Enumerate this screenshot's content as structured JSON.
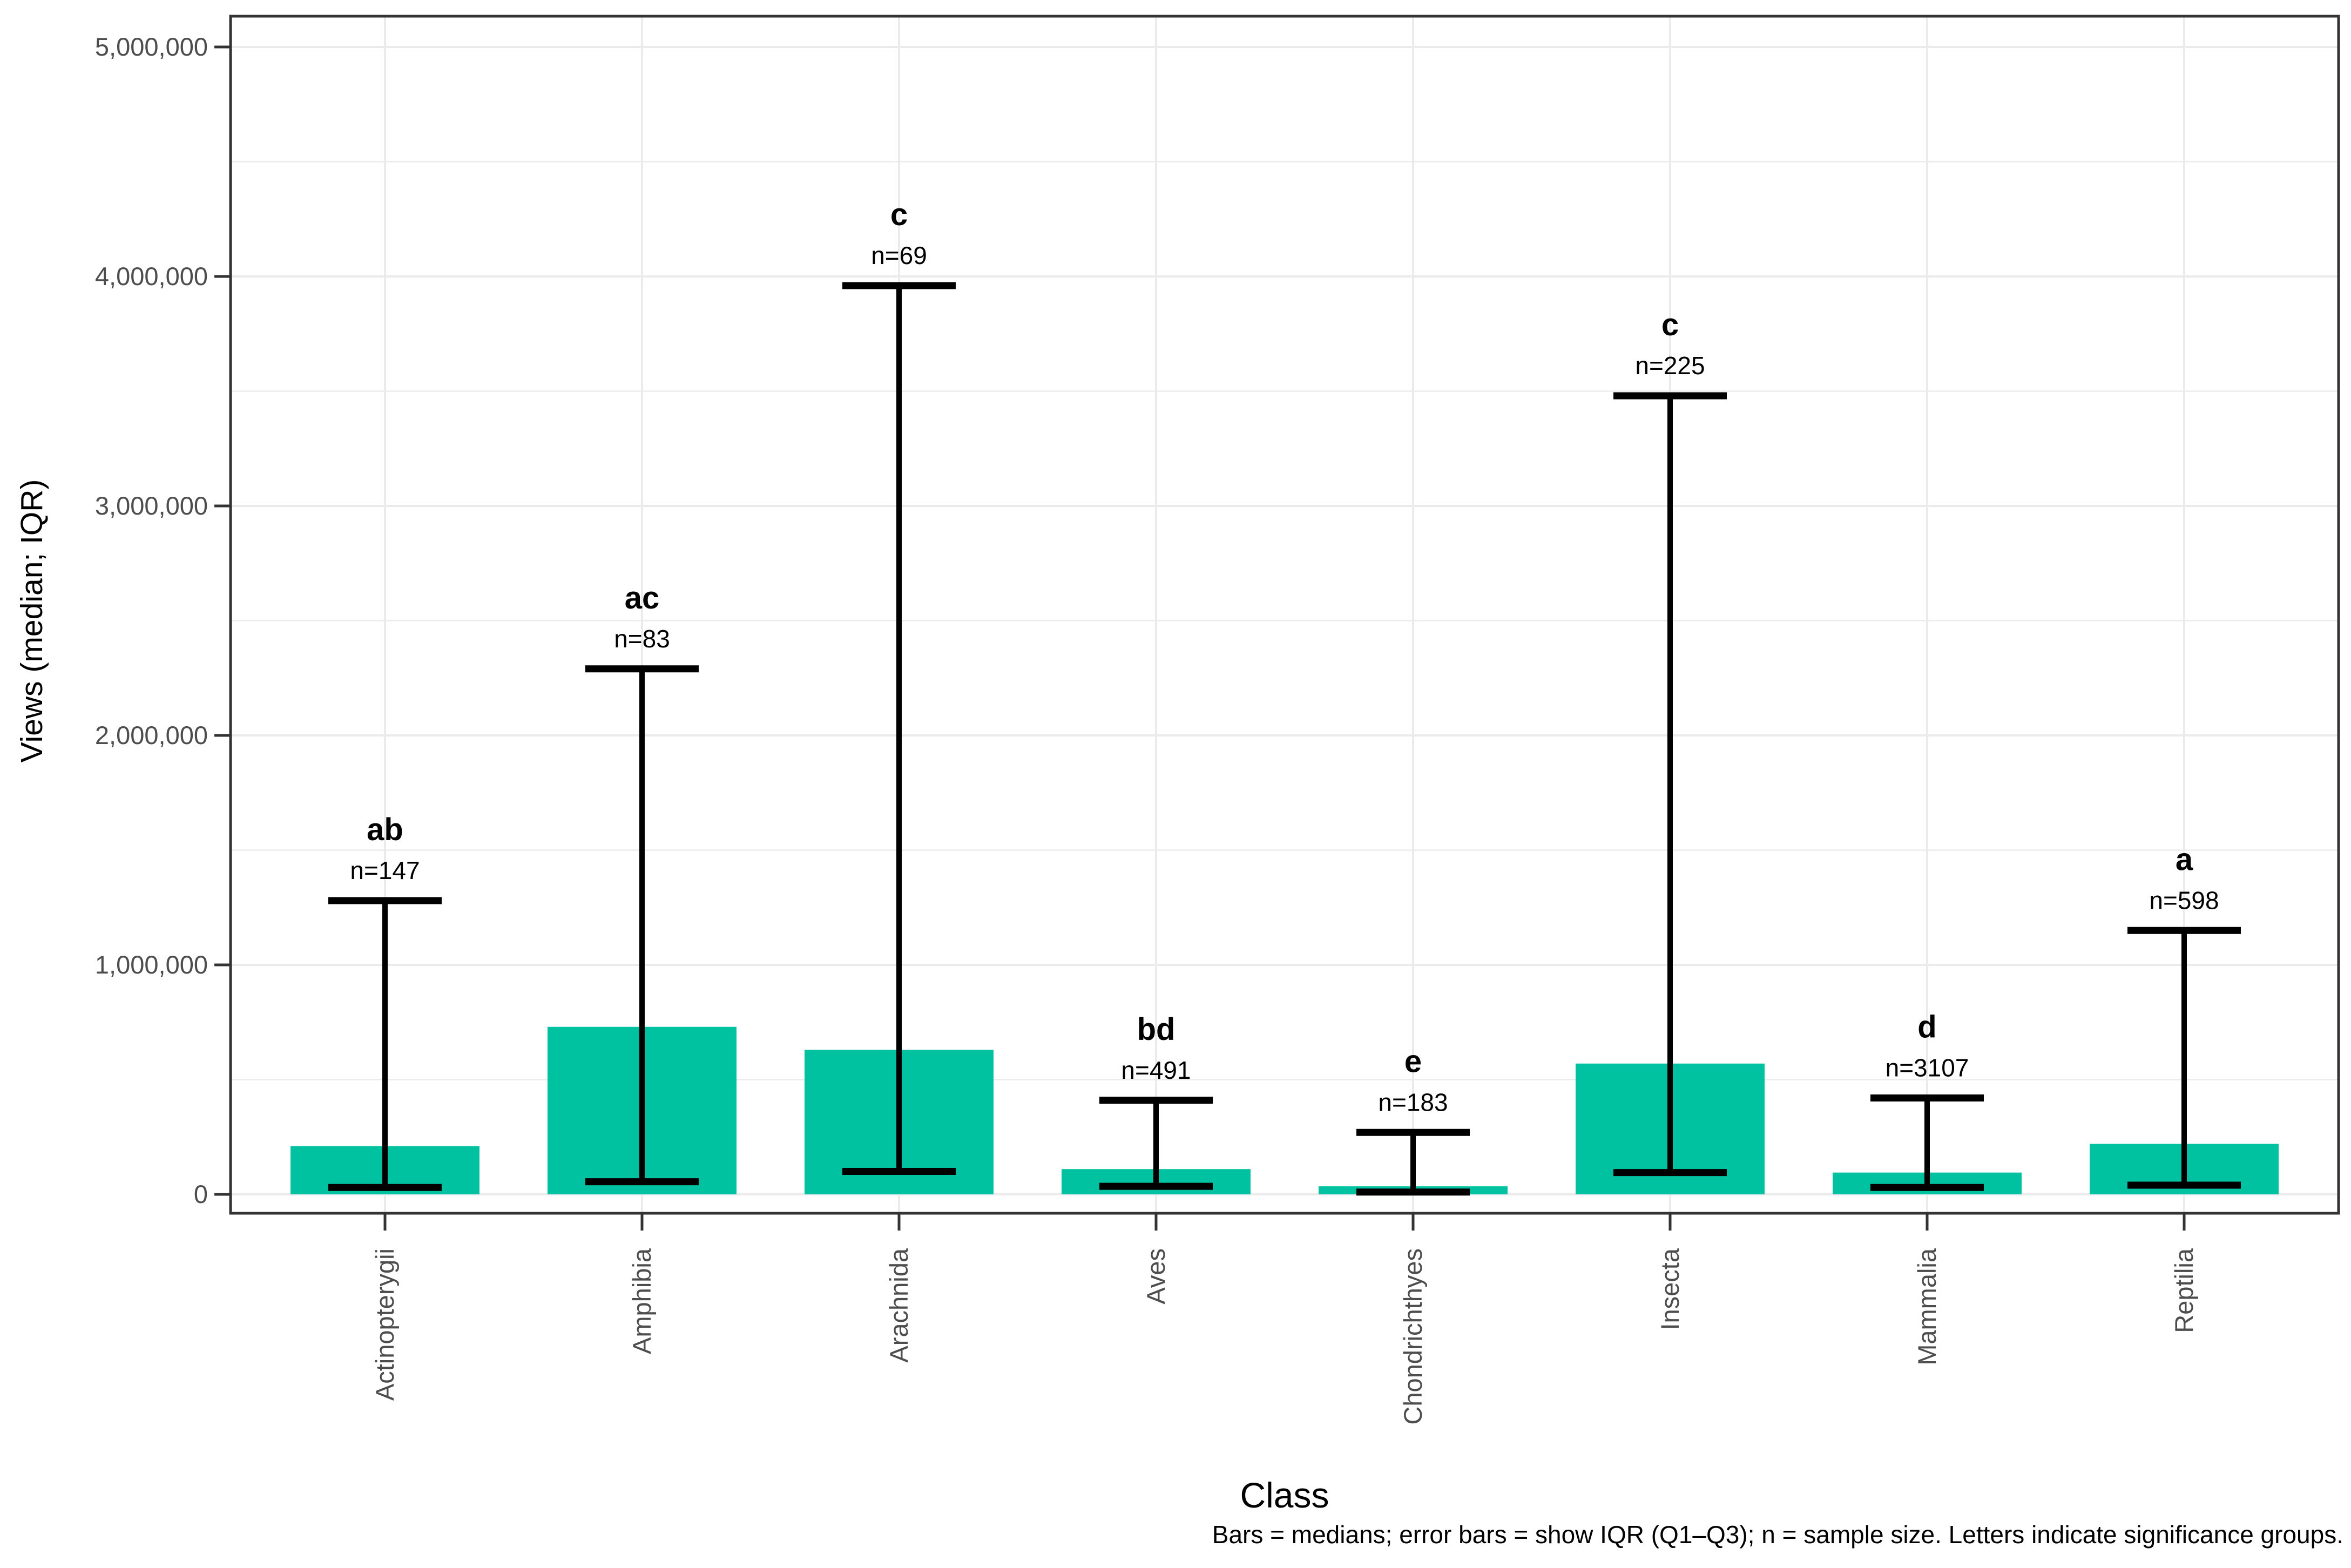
{
  "chart_data": {
    "type": "bar",
    "title": "",
    "xlabel": "Class",
    "ylabel": "Views (median; IQR)",
    "caption": "Bars = medians; error bars = show IQR (Q1–Q3); n = sample size. Letters indicate significance groups.",
    "categories": [
      "Actinopterygii",
      "Amphibia",
      "Arachnida",
      "Aves",
      "Chondrichthyes",
      "Insecta",
      "Mammalia",
      "Reptilia"
    ],
    "series": [
      {
        "name": "Median views",
        "values": [
          210000,
          730000,
          630000,
          110000,
          35000,
          570000,
          95000,
          220000
        ]
      }
    ],
    "error_bars": {
      "label": "IQR (Q1–Q3)",
      "q1": [
        30000,
        55000,
        100000,
        35000,
        10000,
        95000,
        30000,
        40000
      ],
      "q3": [
        1280000,
        2290000,
        3960000,
        410000,
        270000,
        3480000,
        420000,
        1150000
      ]
    },
    "sample_sizes": [
      147,
      83,
      69,
      491,
      183,
      225,
      3107,
      598
    ],
    "n_labels": [
      "n=147",
      "n=83",
      "n=69",
      "n=491",
      "n=183",
      "n=225",
      "n=3107",
      "n=598"
    ],
    "significance_groups": [
      "ab",
      "ac",
      "c",
      "bd",
      "e",
      "c",
      "d",
      "a"
    ],
    "y_axis": {
      "tick_values": [
        0,
        1000000,
        2000000,
        3000000,
        4000000,
        5000000
      ],
      "tick_labels": [
        "0",
        "1,000,000",
        "2,000,000",
        "3,000,000",
        "4,000,000",
        "5,000,000"
      ],
      "minor_tick_step": 500000,
      "ylim": [
        0,
        5000000
      ],
      "grid": true
    },
    "legend_position": "none",
    "colors": {
      "bar_fill": "#00C1A0",
      "error_bar": "#000000",
      "gridline": "#EBEBEB",
      "axis_text": "#4D4D4D",
      "panel_border": "#333333",
      "background": "#FFFFFF"
    }
  }
}
